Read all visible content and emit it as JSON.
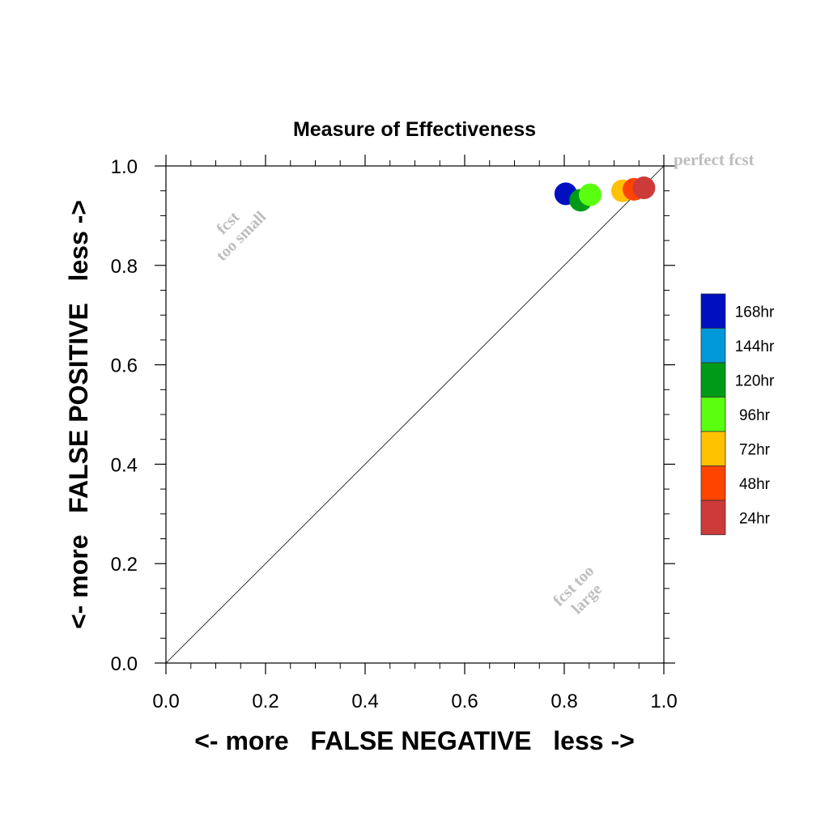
{
  "chart_data": {
    "type": "scatter",
    "title": "Measure of Effectiveness",
    "xlabel": "<- more   FALSE NEGATIVE   less ->",
    "ylabel": "<- more   FALSE POSITIVE   less ->",
    "xlim": [
      0.0,
      1.0
    ],
    "ylim": [
      0.0,
      1.0
    ],
    "xticks": [
      "0.0",
      "0.2",
      "0.4",
      "0.6",
      "0.8",
      "1.0"
    ],
    "yticks": [
      "0.0",
      "0.2",
      "0.4",
      "0.6",
      "0.8",
      "1.0"
    ],
    "grid": false,
    "legend_position": "right",
    "reference_line": {
      "x": [
        0.0,
        1.0
      ],
      "y": [
        0.0,
        1.0
      ]
    },
    "annotations": {
      "perfect": "perfect fcst",
      "too_small": [
        "fcst",
        "too small"
      ],
      "too_large": [
        "fcst too",
        "large"
      ]
    },
    "series": [
      {
        "name": "168hr",
        "color": "#0010c0",
        "x": 0.803,
        "y": 0.944
      },
      {
        "name": "144hr",
        "color": "#0098d8",
        "x": null,
        "y": null
      },
      {
        "name": "120hr",
        "color": "#009a18",
        "x": 0.833,
        "y": 0.931
      },
      {
        "name": "96hr",
        "color": "#5aff10",
        "x": 0.852,
        "y": 0.942
      },
      {
        "name": "72hr",
        "color": "#ffc200",
        "x": 0.917,
        "y": 0.95
      },
      {
        "name": "48hr",
        "color": "#ff4400",
        "x": 0.94,
        "y": 0.953
      },
      {
        "name": "24hr",
        "color": "#cc3a3a",
        "x": 0.96,
        "y": 0.956
      }
    ]
  }
}
